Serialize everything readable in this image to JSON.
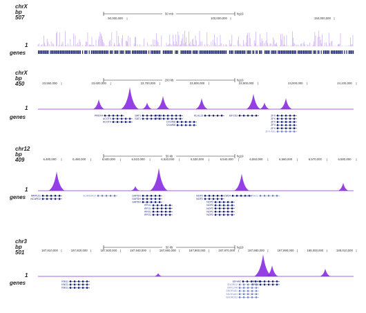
{
  "colors": {
    "signal": "#8a2be2",
    "signal_light": "#c9a7f0",
    "gene": "#1a237e",
    "gene_light": "#7986cb"
  },
  "panels": [
    {
      "chrom": "chrX",
      "bp_label": "bp",
      "max": "507",
      "min": "1",
      "genes_label": "genes",
      "scale_text": "50 mb",
      "assembly": "hg19",
      "ticks": [
        "50,000,000",
        "100,000,000",
        "150,000,000"
      ],
      "genes": [],
      "dense": true
    },
    {
      "chrom": "chrX",
      "bp_label": "bp",
      "max": "450",
      "min": "1",
      "genes_label": "genes",
      "scale_text": "200 kb",
      "assembly": "hg19",
      "ticks": [
        "23,550,000",
        "23,600,000",
        "23,700,000",
        "23,800,000",
        "23,900,000",
        "24,000,000",
        "24,100,000"
      ],
      "genes": [
        "PRDX4",
        "ACOT9",
        "ACOT9",
        "SAT1",
        "SAT1",
        "APOO",
        "APOO",
        "CXorf58",
        "CXorf58",
        "KLHL15",
        "EIF2S3",
        "ZFX",
        "ZFX",
        "ZFX",
        "ZFX",
        "ZFX",
        "ZFX-AS1"
      ]
    },
    {
      "chrom": "chr12",
      "bp_label": "bp",
      "max": "409",
      "min": "1",
      "genes_label": "genes",
      "scale_text": "50 kb",
      "assembly": "hg19",
      "ticks": [
        "6,480,000",
        "6,490,000",
        "6,500,000",
        "6,510,000",
        "6,520,000",
        "6,530,000",
        "6,540,000",
        "6,550,000",
        "6,560,000",
        "6,570,000",
        "6,580,000"
      ],
      "genes": [
        "MRPL51",
        "NCAPD2",
        "SCARNA10",
        "GAPDH",
        "GAPDH",
        "GAPDH",
        "IFFO1",
        "IFFO1",
        "IFFO1",
        "IFFO1",
        "NOP2",
        "NOP2",
        "NOP2",
        "NOP2",
        "NOP2",
        "NOP2",
        "NOP2",
        "CHD4",
        "SCARNA11"
      ]
    },
    {
      "chrom": "chr3",
      "bp_label": "bp",
      "max": "501",
      "min": "1",
      "genes_label": "genes",
      "scale_text": "50 kb",
      "assembly": "hg19",
      "ticks": [
        "187,910,000",
        "187,920,000",
        "187,930,000",
        "187,940,000",
        "187,950,000",
        "187,960,000",
        "187,970,000",
        "187,980,000",
        "187,990,000",
        "188,000,000",
        "188,010,000"
      ],
      "genes": [
        "KNG1",
        "KNG1",
        "KNG1",
        "EIF4A2",
        "SNORD2",
        "MIR1248",
        "SNORA81",
        "SNORA63",
        "SNORD63",
        "RFC4",
        "RFC4"
      ]
    }
  ]
}
